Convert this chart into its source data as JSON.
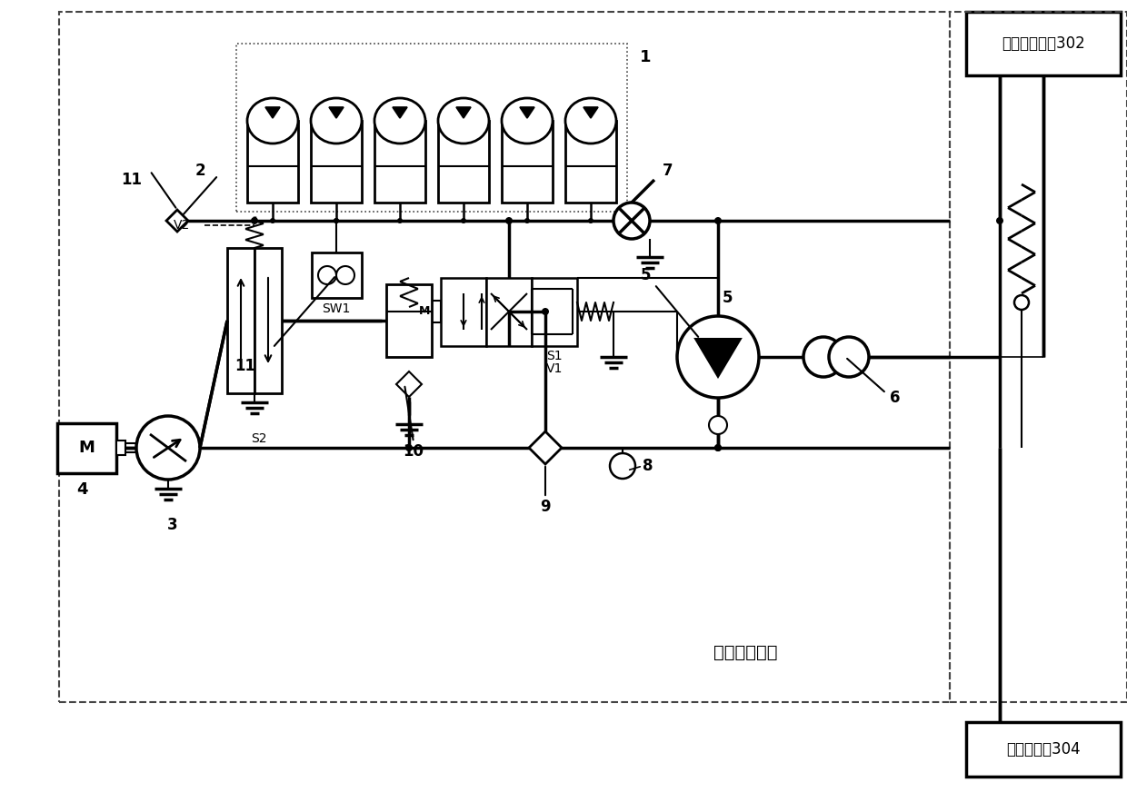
{
  "title": "液压节能系统",
  "label_302": "举升俣下系统302",
  "label_304": "主泵及油笼304",
  "bg_color": "#ffffff",
  "lw_main": 2.5,
  "lw_thin": 1.5,
  "lw_dash": 1.5
}
